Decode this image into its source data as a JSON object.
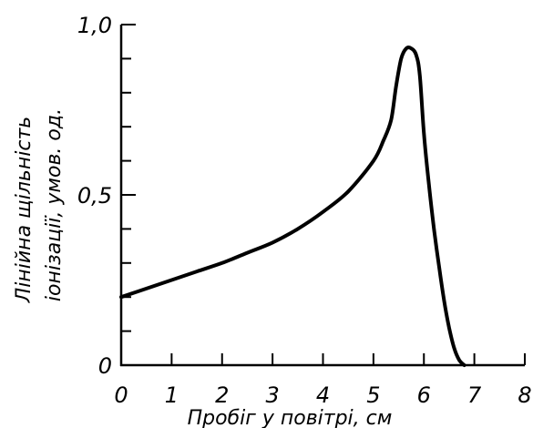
{
  "chart_data": {
    "type": "line",
    "xlabel": "Пробіг у повітрі, см",
    "ylabel_line1": "Лінійна щільність",
    "ylabel_line2": "іонізації, умов. од.",
    "xlim": [
      0,
      8
    ],
    "ylim": [
      0,
      1.0
    ],
    "grid": false,
    "x_tick_labels": [
      "0",
      "1",
      "2",
      "3",
      "4",
      "5",
      "6",
      "7",
      "8"
    ],
    "x_ticks": [
      0,
      1,
      2,
      3,
      4,
      5,
      6,
      7,
      8
    ],
    "y_tick_labels": [
      "0",
      "0,5",
      "1,0"
    ],
    "y_ticks": [
      0,
      0.5,
      1.0
    ],
    "y_minor_ticks": [
      0.1,
      0.2,
      0.3,
      0.4,
      0.6,
      0.7,
      0.8,
      0.9
    ],
    "series": [
      {
        "points": [
          [
            0,
            0.2
          ],
          [
            0.5,
            0.225
          ],
          [
            1,
            0.25
          ],
          [
            1.5,
            0.275
          ],
          [
            2,
            0.3
          ],
          [
            2.5,
            0.33
          ],
          [
            3,
            0.36
          ],
          [
            3.5,
            0.4
          ],
          [
            4,
            0.45
          ],
          [
            4.5,
            0.51
          ],
          [
            5,
            0.6
          ],
          [
            5.2,
            0.66
          ],
          [
            5.35,
            0.72
          ],
          [
            5.45,
            0.82
          ],
          [
            5.55,
            0.9
          ],
          [
            5.65,
            0.93
          ],
          [
            5.75,
            0.93
          ],
          [
            5.85,
            0.91
          ],
          [
            5.92,
            0.85
          ],
          [
            6.0,
            0.68
          ],
          [
            6.1,
            0.53
          ],
          [
            6.2,
            0.4
          ],
          [
            6.3,
            0.29
          ],
          [
            6.4,
            0.19
          ],
          [
            6.5,
            0.11
          ],
          [
            6.6,
            0.05
          ],
          [
            6.7,
            0.015
          ],
          [
            6.8,
            0.0
          ]
        ]
      }
    ]
  }
}
